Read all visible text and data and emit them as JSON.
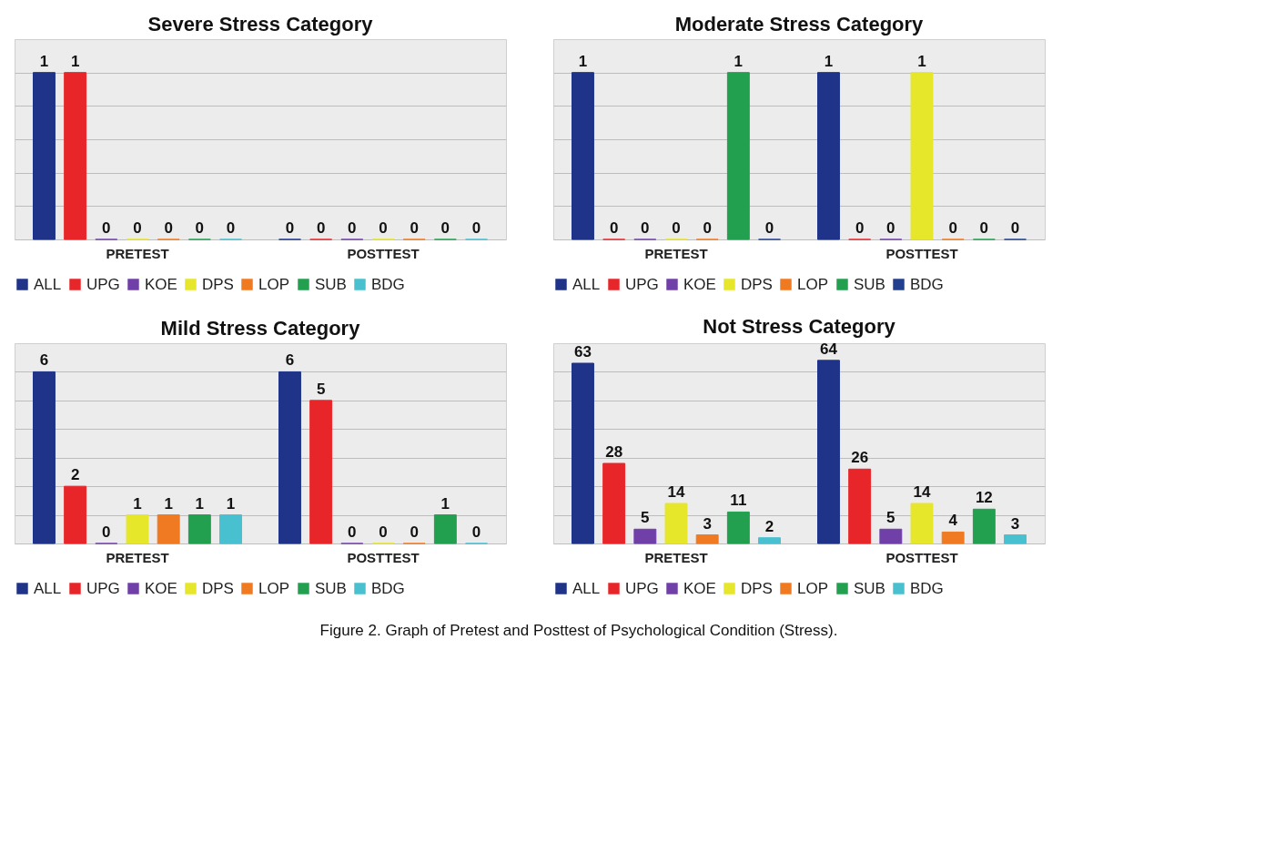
{
  "chart_data": [
    {
      "type": "bar",
      "title": "Severe Stress Category",
      "categories": [
        "PRETEST",
        "POSTTEST"
      ],
      "data_labels": true,
      "legend": "bottom",
      "tick_labels": "x",
      "grid": "y",
      "ylim": [
        0,
        1.2
      ],
      "yticks": [
        {
          "value": 0,
          "label": null
        },
        {
          "value": 0.2,
          "label": null
        },
        {
          "value": 0.4,
          "label": null
        },
        {
          "value": 0.6,
          "label": null
        },
        {
          "value": 0.8,
          "label": null
        },
        {
          "value": 1,
          "label": null
        }
      ],
      "series": [
        {
          "name": "ALL",
          "color": "#1f3388",
          "values": [
            1,
            0
          ]
        },
        {
          "name": "UPG",
          "color": "#e8262a",
          "values": [
            1,
            0
          ]
        },
        {
          "name": "KOE",
          "color": "#7040a8",
          "values": [
            0,
            0
          ]
        },
        {
          "name": "DPS",
          "color": "#e6e62a",
          "values": [
            0,
            0
          ]
        },
        {
          "name": "LOP",
          "color": "#f07a22",
          "values": [
            0,
            0
          ]
        },
        {
          "name": "SUB",
          "color": "#22a050",
          "values": [
            0,
            0
          ]
        },
        {
          "name": "BDG",
          "color": "#48c0d0",
          "values": [
            0,
            0
          ]
        }
      ]
    },
    {
      "type": "bar",
      "title": "Moderate Stress Category",
      "categories": [
        "PRETEST",
        "POSTTEST"
      ],
      "data_labels": true,
      "legend": "bottom",
      "tick_labels": "x",
      "grid": "y",
      "ylim": [
        0,
        1.2
      ],
      "yticks": [
        {
          "value": 0,
          "label": null
        },
        {
          "value": 0.2,
          "label": null
        },
        {
          "value": 0.4,
          "label": null
        },
        {
          "value": 0.6,
          "label": null
        },
        {
          "value": 0.8,
          "label": null
        },
        {
          "value": 1,
          "label": null
        }
      ],
      "series": [
        {
          "name": "ALL",
          "color": "#1f3388",
          "values": [
            1,
            1
          ]
        },
        {
          "name": "UPG",
          "color": "#e8262a",
          "values": [
            0,
            0
          ]
        },
        {
          "name": "KOE",
          "color": "#7040a8",
          "values": [
            0,
            0
          ]
        },
        {
          "name": "DPS",
          "color": "#e6e62a",
          "values": [
            0,
            1
          ]
        },
        {
          "name": "LOP",
          "color": "#f07a22",
          "values": [
            0,
            0
          ]
        },
        {
          "name": "SUB",
          "color": "#22a050",
          "values": [
            1,
            0
          ]
        },
        {
          "name": "BDG",
          "color": "#23408e",
          "values": [
            0,
            0
          ]
        }
      ]
    },
    {
      "type": "bar",
      "title": "Mild Stress Category",
      "categories": [
        "PRETEST",
        "POSTTEST"
      ],
      "data_labels": true,
      "legend": "bottom",
      "tick_labels": "x",
      "grid": "y",
      "ylim": [
        0,
        7
      ],
      "yticks": [
        {
          "value": 0,
          "label": null
        },
        {
          "value": 1,
          "label": null
        },
        {
          "value": 2,
          "label": null
        },
        {
          "value": 3,
          "label": null
        },
        {
          "value": 4,
          "label": null
        },
        {
          "value": 5,
          "label": null
        },
        {
          "value": 6,
          "label": null
        }
      ],
      "series": [
        {
          "name": "ALL",
          "color": "#1f3388",
          "values": [
            6,
            6
          ]
        },
        {
          "name": "UPG",
          "color": "#e8262a",
          "values": [
            2,
            5
          ]
        },
        {
          "name": "KOE",
          "color": "#7040a8",
          "values": [
            0,
            0
          ]
        },
        {
          "name": "DPS",
          "color": "#e6e62a",
          "values": [
            1,
            0
          ]
        },
        {
          "name": "LOP",
          "color": "#f07a22",
          "values": [
            1,
            0
          ]
        },
        {
          "name": "SUB",
          "color": "#22a050",
          "values": [
            1,
            1
          ]
        },
        {
          "name": "BDG",
          "color": "#48c0d0",
          "values": [
            1,
            0
          ]
        }
      ]
    },
    {
      "type": "bar",
      "title": "Not Stress Category",
      "categories": [
        "PRETEST",
        "POSTTEST"
      ],
      "data_labels": true,
      "legend": "bottom",
      "tick_labels": "x",
      "grid": "y",
      "ylim": [
        0,
        70
      ],
      "yticks": [
        {
          "value": 0,
          "label": null
        },
        {
          "value": 10,
          "label": null
        },
        {
          "value": 20,
          "label": null
        },
        {
          "value": 30,
          "label": null
        },
        {
          "value": 40,
          "label": null
        },
        {
          "value": 50,
          "label": null
        },
        {
          "value": 60,
          "label": null
        }
      ],
      "annotations": [
        "Figure 2. Graph of Pretest and Posttest of Psychological Condition (Stress)."
      ],
      "series": [
        {
          "name": "ALL",
          "color": "#1f3388",
          "values": [
            63,
            64
          ]
        },
        {
          "name": "UPG",
          "color": "#e8262a",
          "values": [
            28,
            26
          ]
        },
        {
          "name": "KOE",
          "color": "#7040a8",
          "values": [
            5,
            5
          ]
        },
        {
          "name": "DPS",
          "color": "#e6e62a",
          "values": [
            14,
            14
          ]
        },
        {
          "name": "LOP",
          "color": "#f07a22",
          "values": [
            3,
            4
          ]
        },
        {
          "name": "SUB",
          "color": "#22a050",
          "values": [
            11,
            12
          ]
        },
        {
          "name": "BDG",
          "color": "#48c0d0",
          "values": [
            2,
            3
          ]
        }
      ]
    }
  ]
}
